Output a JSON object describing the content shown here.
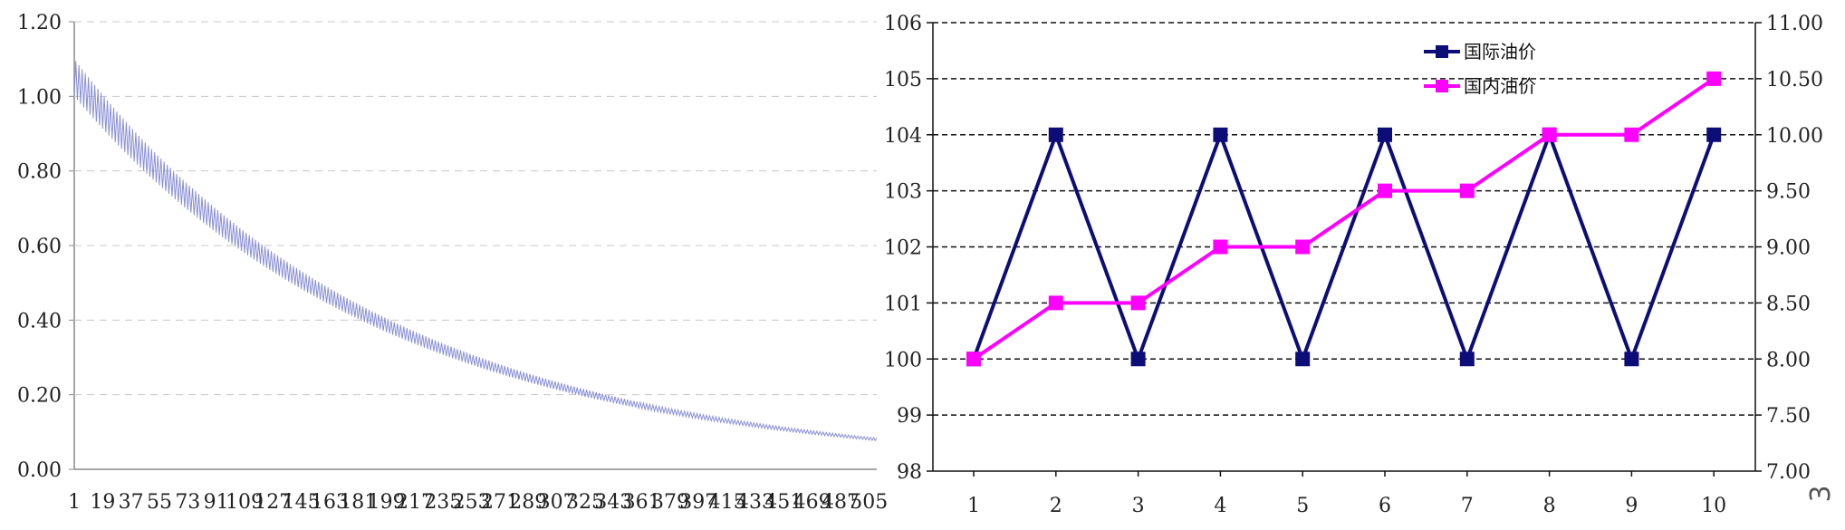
{
  "chart_data": [
    {
      "type": "line",
      "title": "",
      "xlabel": "",
      "ylabel": "",
      "x_tick_labels": [
        "1",
        "19",
        "37",
        "55",
        "73",
        "91",
        "109",
        "127",
        "145",
        "163",
        "181",
        "199",
        "217",
        "235",
        "253",
        "271",
        "289",
        "307",
        "325",
        "343",
        "361",
        "379",
        "397",
        "415",
        "433",
        "451",
        "469",
        "487",
        "505"
      ],
      "x_range": [
        1,
        510
      ],
      "y_tick_labels": [
        "0.00",
        "0.20",
        "0.40",
        "0.60",
        "0.80",
        "1.00",
        "1.20"
      ],
      "ylim": [
        0,
        1.2
      ],
      "grid": "horizontal-dashed",
      "series": [
        {
          "color": "#8a8fd6",
          "upper_envelope": {
            "start": 1.1,
            "decay_rate": 0.00505
          },
          "lower_envelope": {
            "start": 1.0,
            "decay_rate": 0.00505
          },
          "oscillating_band": true
        }
      ]
    },
    {
      "type": "line",
      "title": "",
      "xlabel": "",
      "ylabel": "",
      "categories": [
        "1",
        "2",
        "3",
        "4",
        "5",
        "6",
        "7",
        "8",
        "9",
        "10"
      ],
      "y_left": {
        "ylim": [
          98,
          106
        ],
        "tick_labels": [
          "98",
          "99",
          "100",
          "101",
          "102",
          "103",
          "104",
          "105",
          "106"
        ]
      },
      "y_right": {
        "ylim": [
          7.0,
          11.0
        ],
        "tick_labels": [
          "7.00",
          "7.50",
          "8.00",
          "8.50",
          "9.00",
          "9.50",
          "10.00",
          "10.50",
          "11.00"
        ]
      },
      "grid": "horizontal-dashed",
      "legend_position": "top-center",
      "series": [
        {
          "name": "国际油价",
          "axis": "left",
          "color": "#0d0d78",
          "values": [
            100,
            104,
            100,
            104,
            100,
            104,
            100,
            104,
            100,
            104
          ]
        },
        {
          "name": "国内油价",
          "axis": "right",
          "color": "#ff00ff",
          "values": [
            8.0,
            8.5,
            8.5,
            9.0,
            9.0,
            9.5,
            9.5,
            10.0,
            10.0,
            10.5
          ]
        }
      ]
    }
  ],
  "page_number": "3"
}
